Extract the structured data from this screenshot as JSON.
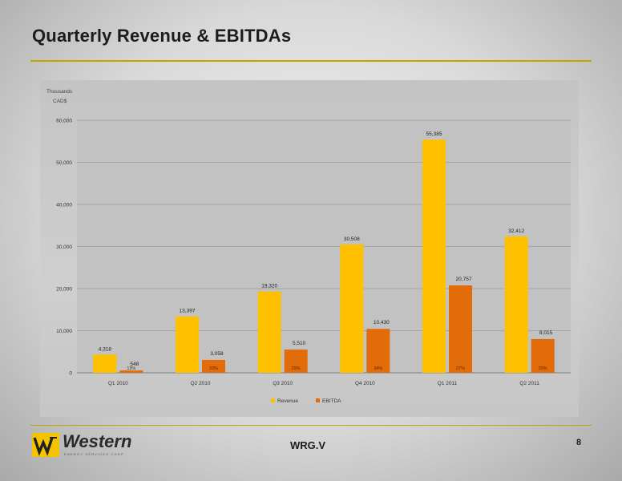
{
  "slide": {
    "title": "Quarterly Revenue & EBITDAs",
    "ticker": "WRG.V",
    "page_number": "8",
    "logo": {
      "name": "Western",
      "tagline": "ENERGY SERVICES CORP"
    },
    "colors": {
      "revenue": "#ffc000",
      "ebitda": "#e26b0a",
      "accent_rule": "#c8a200"
    }
  },
  "chart_data": {
    "type": "bar",
    "ylabel_line1": "Thousands",
    "ylabel_line2": "CAD$",
    "ylim": [
      0,
      60000
    ],
    "yticks": [
      0,
      10000,
      20000,
      30000,
      40000,
      50000,
      60000
    ],
    "ytick_labels": [
      "0",
      "10,000",
      "20,000",
      "30,000",
      "40,000",
      "50,000",
      "60,000"
    ],
    "grid": true,
    "legend_position": "bottom",
    "categories": [
      "Q1 2010",
      "Q2 2010",
      "Q3 2010",
      "Q4 2010",
      "Q1 2011",
      "Q2 2011"
    ],
    "series": [
      {
        "name": "Revenue",
        "color": "#ffc000",
        "values": [
          4318,
          13397,
          19320,
          30508,
          55385,
          32412
        ],
        "labels": [
          "4,318",
          "13,397",
          "19,320",
          "30,508",
          "55,385",
          "32,412"
        ]
      },
      {
        "name": "EBITDA",
        "color": "#e26b0a",
        "values": [
          548,
          3058,
          5510,
          10430,
          20757,
          8015
        ],
        "labels": [
          "548",
          "3,058",
          "5,510",
          "10,430",
          "20,757",
          "8,015"
        ],
        "margins": [
          "13%",
          "23%",
          "29%",
          "34%",
          "37%",
          "25%"
        ]
      }
    ]
  }
}
